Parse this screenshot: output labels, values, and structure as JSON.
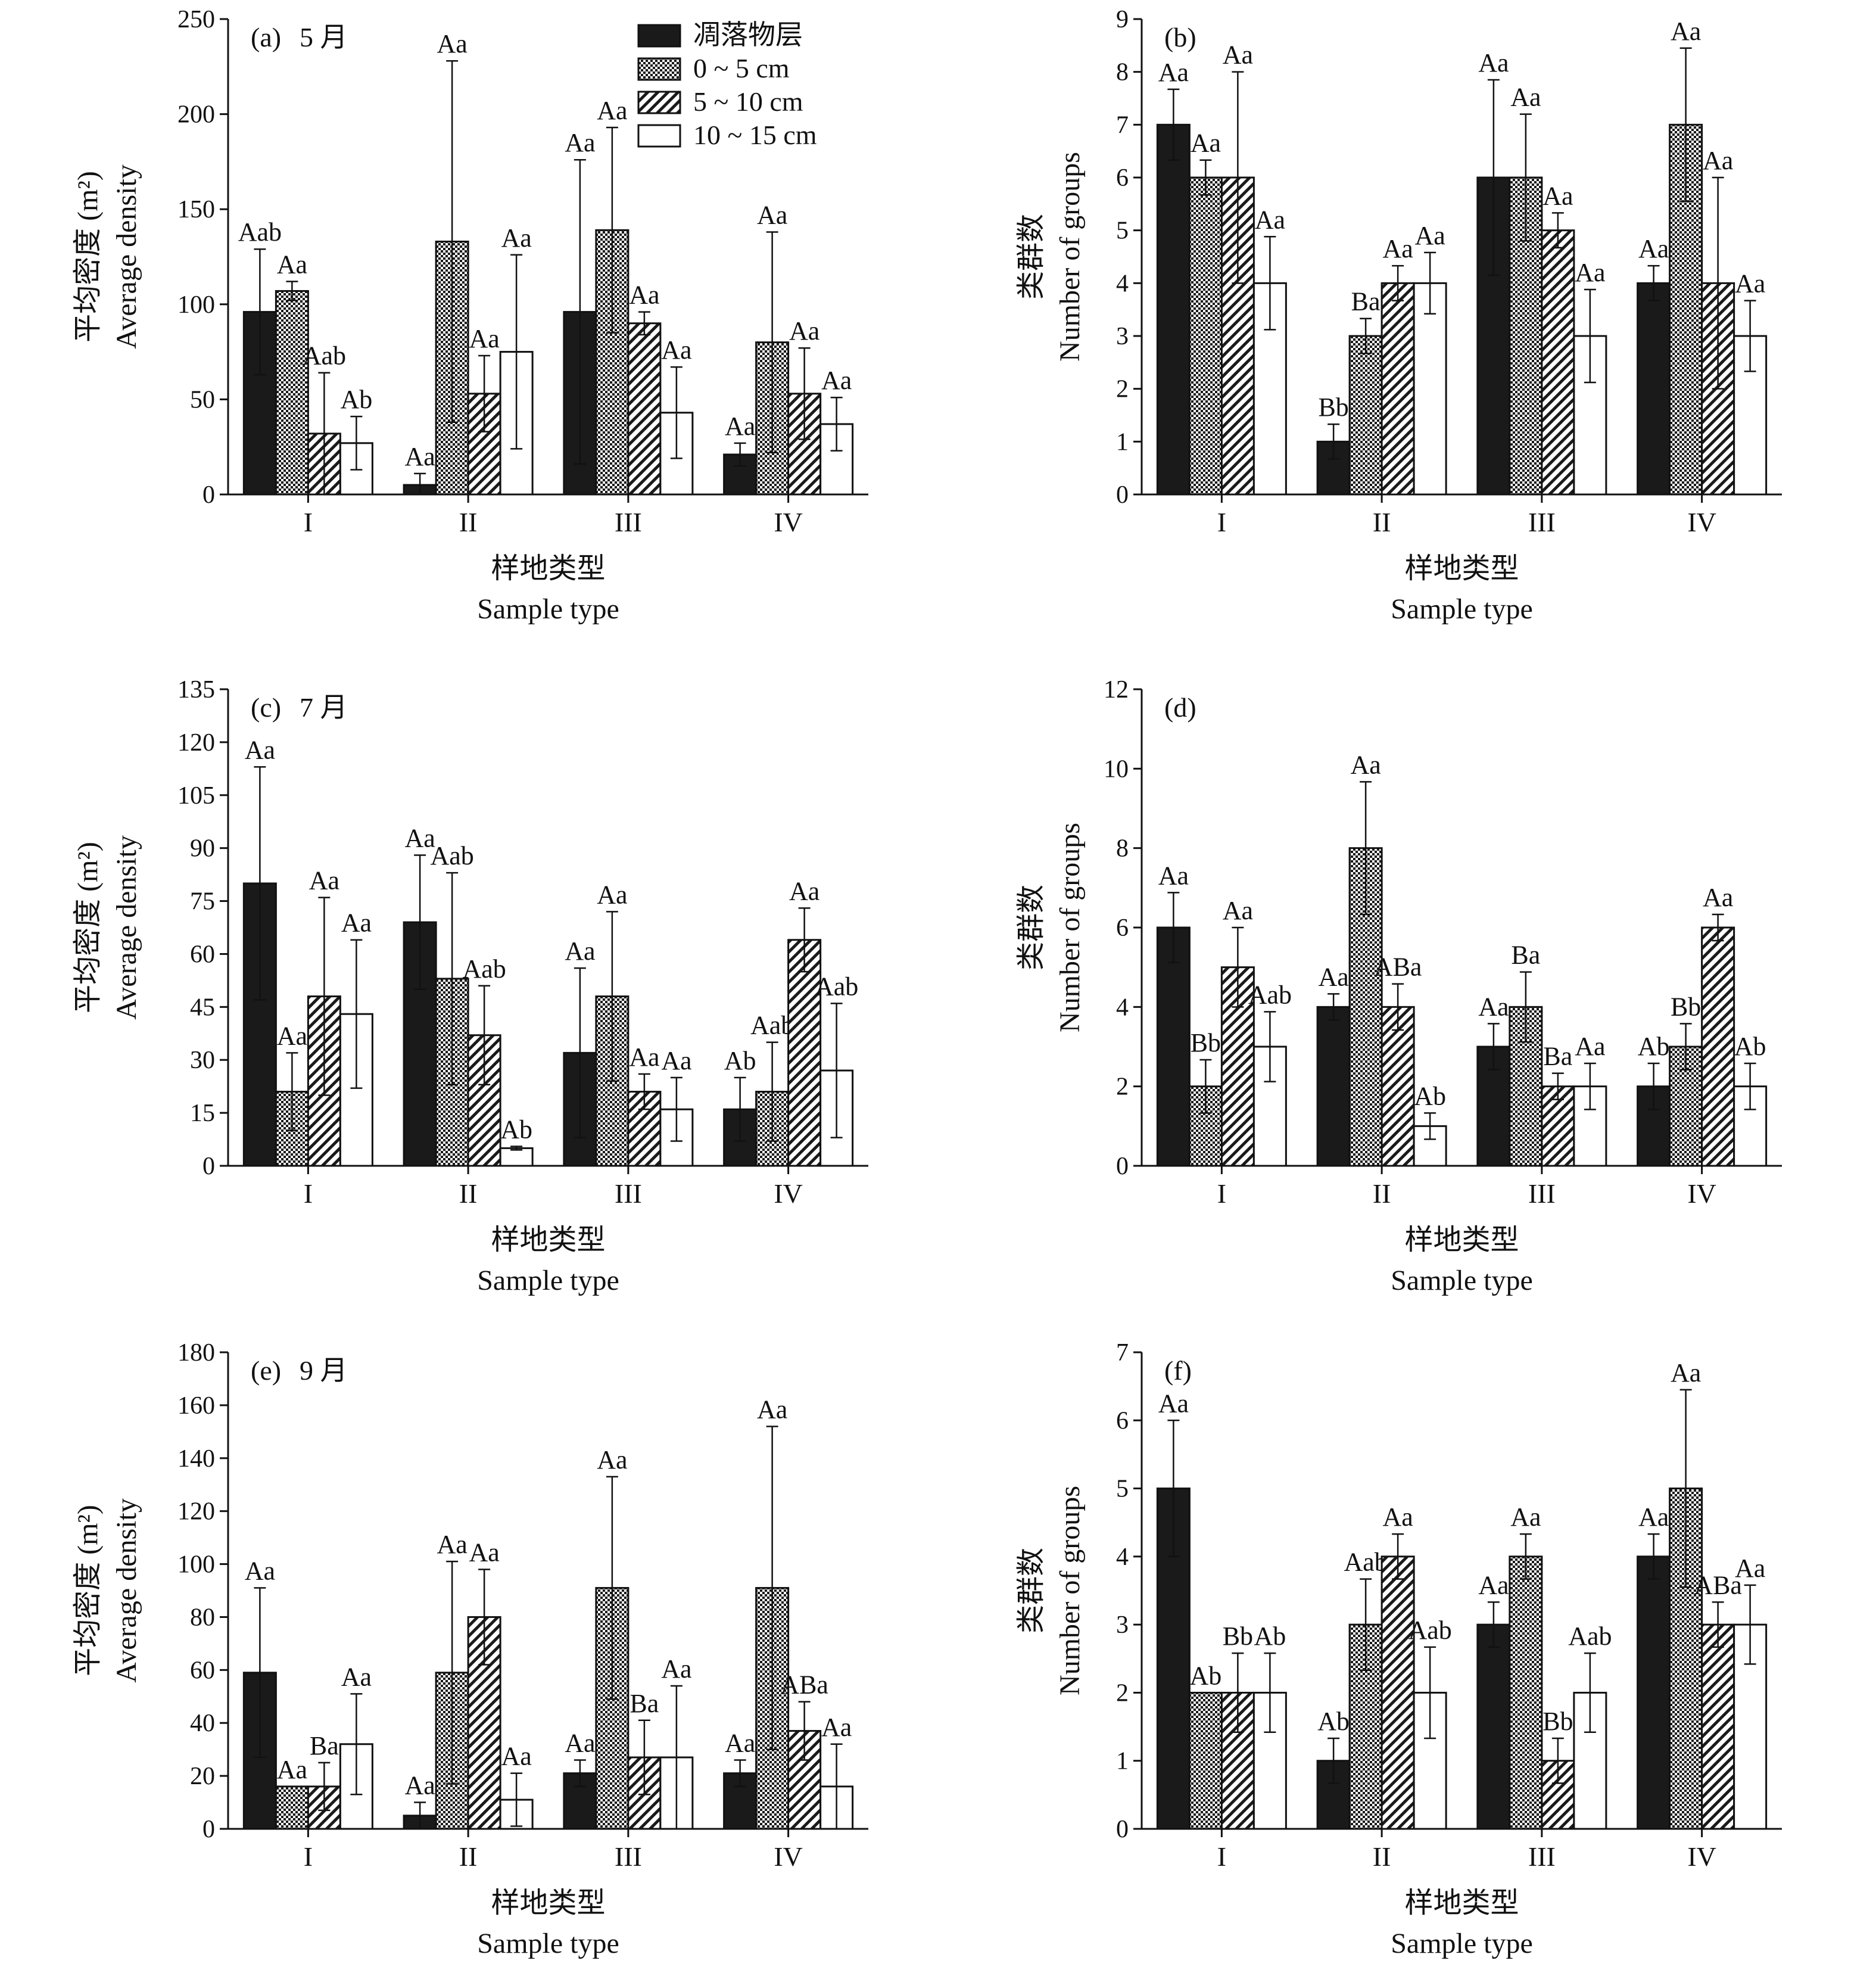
{
  "legend": {
    "items": [
      {
        "label": "凋落物层",
        "pattern": "solid"
      },
      {
        "label": "0 ~ 5 cm",
        "pattern": "dots"
      },
      {
        "label": "5 ~ 10 cm",
        "pattern": "hatch"
      },
      {
        "label": "10 ~ 15 cm",
        "pattern": "open"
      }
    ]
  },
  "colors": {
    "solid": "#1a1a1a",
    "axis": "#111111",
    "open": "#ffffff"
  },
  "chart_data": [
    {
      "panel": "(a)",
      "title": "5 月",
      "type": "bar",
      "ylabel_cn": "平均密度 (m²)",
      "ylabel_en": "Average density",
      "xlabel_cn": "样地类型",
      "xlabel_en": "Sample type",
      "categories": [
        "I",
        "II",
        "III",
        "IV"
      ],
      "ylim": [
        0,
        250
      ],
      "yticks": [
        0,
        50,
        100,
        150,
        200,
        250
      ],
      "show_legend": true,
      "series": [
        {
          "name": "凋落物层",
          "values": [
            96,
            5,
            96,
            21
          ],
          "errors": [
            33,
            6,
            80,
            6
          ],
          "labels": [
            "Aab",
            "Aa",
            "Aa",
            "Aa"
          ]
        },
        {
          "name": "0 ~ 5 cm",
          "values": [
            107,
            133,
            139,
            80
          ],
          "errors": [
            5,
            95,
            54,
            58
          ],
          "labels": [
            "Aa",
            "Aa",
            "Aa",
            "Aa"
          ]
        },
        {
          "name": "5 ~ 10 cm",
          "values": [
            32,
            53,
            90,
            53
          ],
          "errors": [
            32,
            20,
            6,
            24
          ],
          "labels": [
            "Aab",
            "Aa",
            "Aa",
            "Aa"
          ]
        },
        {
          "name": "10 ~ 15 cm",
          "values": [
            27,
            75,
            43,
            37
          ],
          "errors": [
            14,
            51,
            24,
            14
          ],
          "labels": [
            "Ab",
            "Aa",
            "Aa",
            "Aa"
          ]
        }
      ]
    },
    {
      "panel": "(b)",
      "title": "",
      "type": "bar",
      "ylabel_cn": "类群数",
      "ylabel_en": "Number of groups",
      "xlabel_cn": "样地类型",
      "xlabel_en": "Sample type",
      "categories": [
        "I",
        "II",
        "III",
        "IV"
      ],
      "ylim": [
        0,
        9
      ],
      "yticks": [
        0,
        1,
        2,
        3,
        4,
        5,
        6,
        7,
        8,
        9
      ],
      "show_legend": false,
      "series": [
        {
          "name": "凋落物层",
          "values": [
            7,
            1,
            6,
            4
          ],
          "errors": [
            0.67,
            0.33,
            1.85,
            0.33
          ],
          "labels": [
            "Aa",
            "Bb",
            "Aa",
            "Aa"
          ]
        },
        {
          "name": "0 ~ 5 cm",
          "values": [
            6,
            3,
            6,
            7
          ],
          "errors": [
            0.33,
            0.33,
            1.2,
            1.45
          ],
          "labels": [
            "Aa",
            "Ba",
            "Aa",
            "Aa"
          ]
        },
        {
          "name": "5 ~ 10 cm",
          "values": [
            6,
            4,
            5,
            4
          ],
          "errors": [
            2,
            0.33,
            0.33,
            2
          ],
          "labels": [
            "Aa",
            "Aa",
            "Aa",
            "Aa"
          ]
        },
        {
          "name": "10 ~ 15 cm",
          "values": [
            4,
            4,
            3,
            3
          ],
          "errors": [
            0.88,
            0.58,
            0.88,
            0.67
          ],
          "labels": [
            "Aa",
            "Aa",
            "Aa",
            "Aa"
          ]
        }
      ]
    },
    {
      "panel": "(c)",
      "title": "7 月",
      "type": "bar",
      "ylabel_cn": "平均密度 (m²)",
      "ylabel_en": "Average density",
      "xlabel_cn": "样地类型",
      "xlabel_en": "Sample type",
      "categories": [
        "I",
        "II",
        "III",
        "IV"
      ],
      "ylim": [
        0,
        135
      ],
      "yticks": [
        0,
        15,
        30,
        45,
        60,
        75,
        90,
        105,
        120,
        135
      ],
      "show_legend": false,
      "series": [
        {
          "name": "凋落物层",
          "values": [
            80,
            69,
            32,
            16
          ],
          "errors": [
            33,
            19,
            24,
            9
          ],
          "labels": [
            "Aa",
            "Aa",
            "Aa",
            "Ab"
          ]
        },
        {
          "name": "0 ~ 5 cm",
          "values": [
            21,
            53,
            48,
            21
          ],
          "errors": [
            11,
            30,
            24,
            14
          ],
          "labels": [
            "Aa",
            "Aab",
            "Aa",
            "Aab"
          ]
        },
        {
          "name": "5 ~ 10 cm",
          "values": [
            48,
            37,
            21,
            64
          ],
          "errors": [
            28,
            14,
            5,
            9
          ],
          "labels": [
            "Aa",
            "Aab",
            "Aa",
            "Aa"
          ]
        },
        {
          "name": "10 ~ 15 cm",
          "values": [
            43,
            5,
            16,
            27
          ],
          "errors": [
            21,
            0.5,
            9,
            19
          ],
          "labels": [
            "Aa",
            "Ab",
            "Aa",
            "Aab"
          ]
        }
      ]
    },
    {
      "panel": "(d)",
      "title": "",
      "type": "bar",
      "ylabel_cn": "类群数",
      "ylabel_en": "Number of groups",
      "xlabel_cn": "样地类型",
      "xlabel_en": "Sample type",
      "categories": [
        "I",
        "II",
        "III",
        "IV"
      ],
      "ylim": [
        0,
        12
      ],
      "yticks": [
        0,
        2,
        4,
        6,
        8,
        10,
        12
      ],
      "show_legend": false,
      "series": [
        {
          "name": "凋落物层",
          "values": [
            6,
            4,
            3,
            2
          ],
          "errors": [
            0.88,
            0.33,
            0.58,
            0.58
          ],
          "labels": [
            "Aa",
            "Aa",
            "Aa",
            "Ab"
          ]
        },
        {
          "name": "0 ~ 5 cm",
          "values": [
            2,
            8,
            4,
            3
          ],
          "errors": [
            0.67,
            1.67,
            0.88,
            0.58
          ],
          "labels": [
            "Bb",
            "Aa",
            "Ba",
            "Bb"
          ]
        },
        {
          "name": "5 ~ 10 cm",
          "values": [
            5,
            4,
            2,
            6
          ],
          "errors": [
            1,
            0.58,
            0.33,
            0.33
          ],
          "labels": [
            "Aa",
            "ABa",
            "Ba",
            "Aa"
          ]
        },
        {
          "name": "10 ~ 15 cm",
          "values": [
            3,
            1,
            2,
            2
          ],
          "errors": [
            0.88,
            0.33,
            0.58,
            0.58
          ],
          "labels": [
            "Aab",
            "Ab",
            "Aa",
            "Ab"
          ]
        }
      ]
    },
    {
      "panel": "(e)",
      "title": "9 月",
      "type": "bar",
      "ylabel_cn": "平均密度 (m²)",
      "ylabel_en": "Average density",
      "xlabel_cn": "样地类型",
      "xlabel_en": "Sample type",
      "categories": [
        "I",
        "II",
        "III",
        "IV"
      ],
      "ylim": [
        0,
        180
      ],
      "yticks": [
        0,
        20,
        40,
        60,
        80,
        100,
        120,
        140,
        160,
        180
      ],
      "show_legend": false,
      "series": [
        {
          "name": "凋落物层",
          "values": [
            59,
            5,
            21,
            21
          ],
          "errors": [
            32,
            5,
            5,
            5
          ],
          "labels": [
            "Aa",
            "Aa",
            "Aa",
            "Aa"
          ]
        },
        {
          "name": "0 ~ 5 cm",
          "values": [
            16,
            59,
            91,
            91
          ],
          "errors": [
            0,
            42,
            42,
            61
          ],
          "labels": [
            "Aa",
            "Aa",
            "Aa",
            "Aa"
          ]
        },
        {
          "name": "5 ~ 10 cm",
          "values": [
            16,
            80,
            27,
            37
          ],
          "errors": [
            9,
            18,
            14,
            11
          ],
          "labels": [
            "Ba",
            "Aa",
            "Ba",
            "ABa"
          ]
        },
        {
          "name": "10 ~ 15 cm",
          "values": [
            32,
            11,
            27,
            16
          ],
          "errors": [
            19,
            10,
            27,
            16
          ],
          "labels": [
            "Aa",
            "Aa",
            "Aa",
            "Aa"
          ]
        }
      ]
    },
    {
      "panel": "(f)",
      "title": "",
      "type": "bar",
      "ylabel_cn": "类群数",
      "ylabel_en": "Number of groups",
      "xlabel_cn": "样地类型",
      "xlabel_en": "Sample type",
      "categories": [
        "I",
        "II",
        "III",
        "IV"
      ],
      "ylim": [
        0,
        7
      ],
      "yticks": [
        0,
        1,
        2,
        3,
        4,
        5,
        6,
        7
      ],
      "show_legend": false,
      "series": [
        {
          "name": "凋落物层",
          "values": [
            5,
            1,
            3,
            4
          ],
          "errors": [
            1,
            0.33,
            0.33,
            0.33
          ],
          "labels": [
            "Aa",
            "Ab",
            "Aa",
            "Aa"
          ]
        },
        {
          "name": "0 ~ 5 cm",
          "values": [
            2,
            3,
            4,
            5
          ],
          "errors": [
            0,
            0.67,
            0.33,
            1.45
          ],
          "labels": [
            "Ab",
            "Aab",
            "Aa",
            "Aa"
          ]
        },
        {
          "name": "5 ~ 10 cm",
          "values": [
            2,
            4,
            1,
            3
          ],
          "errors": [
            0.58,
            0.33,
            0.33,
            0.33
          ],
          "labels": [
            "Bb",
            "Aa",
            "Bb",
            "ABa"
          ]
        },
        {
          "name": "10 ~ 15 cm",
          "values": [
            2,
            2,
            2,
            3
          ],
          "errors": [
            0.58,
            0.67,
            0.58,
            0.58
          ],
          "labels": [
            "Ab",
            "Aab",
            "Aab",
            "Aa"
          ]
        }
      ]
    }
  ]
}
